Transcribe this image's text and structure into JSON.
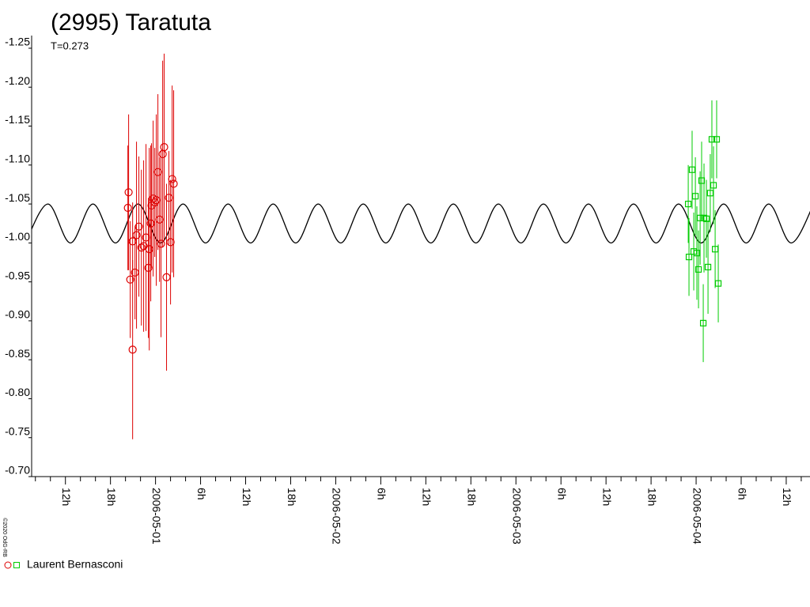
{
  "chart_data": {
    "type": "lightcurve",
    "title": "(2995) Taratuta",
    "subtitle": "T=0.273",
    "credit": "©2020 OdG-RB",
    "xlim": [
      "2006-04-30T07:30",
      "2006-05-04T15:10"
    ],
    "ylim": [
      -0.7,
      -1.25
    ],
    "yticks": [
      {
        "value": -1.25,
        "label": "-1.25"
      },
      {
        "value": -1.2,
        "label": "-1.20"
      },
      {
        "value": -1.15,
        "label": "-1.15"
      },
      {
        "value": -1.1,
        "label": "-1.10"
      },
      {
        "value": -1.05,
        "label": "-1.05"
      },
      {
        "value": -1.0,
        "label": "-1.00"
      },
      {
        "value": -0.95,
        "label": "-0.95"
      },
      {
        "value": -0.9,
        "label": "-0.90"
      },
      {
        "value": -0.85,
        "label": "-0.85"
      },
      {
        "value": -0.8,
        "label": "-0.80"
      },
      {
        "value": -0.75,
        "label": "-0.75"
      },
      {
        "value": -0.7,
        "label": "-0.70"
      }
    ],
    "xticks": [
      {
        "value": "2006-04-30T12:00",
        "label": "12h"
      },
      {
        "value": "2006-04-30T18:00",
        "label": "18h"
      },
      {
        "value": "2006-05-01T00:00",
        "label": "2006-05-01"
      },
      {
        "value": "2006-05-01T06:00",
        "label": "6h"
      },
      {
        "value": "2006-05-01T12:00",
        "label": "12h"
      },
      {
        "value": "2006-05-01T18:00",
        "label": "18h"
      },
      {
        "value": "2006-05-02T00:00",
        "label": "2006-05-02"
      },
      {
        "value": "2006-05-02T06:00",
        "label": "6h"
      },
      {
        "value": "2006-05-02T12:00",
        "label": "12h"
      },
      {
        "value": "2006-05-02T18:00",
        "label": "18h"
      },
      {
        "value": "2006-05-03T00:00",
        "label": "2006-05-03"
      },
      {
        "value": "2006-05-03T06:00",
        "label": "6h"
      },
      {
        "value": "2006-05-03T12:00",
        "label": "12h"
      },
      {
        "value": "2006-05-03T18:00",
        "label": "18h"
      },
      {
        "value": "2006-05-04T00:00",
        "label": "2006-05-04"
      },
      {
        "value": "2006-05-04T06:00",
        "label": "6h"
      },
      {
        "value": "2006-05-04T12:00",
        "label": "12h"
      }
    ],
    "xminorticks": [
      "2006-04-30T08:00",
      "2006-04-30T10:00",
      "2006-04-30T14:00",
      "2006-04-30T16:00",
      "2006-04-30T20:00",
      "2006-04-30T22:00",
      "2006-05-01T02:00",
      "2006-05-01T04:00",
      "2006-05-01T08:00",
      "2006-05-01T10:00",
      "2006-05-01T14:00",
      "2006-05-01T16:00",
      "2006-05-01T20:00",
      "2006-05-01T22:00",
      "2006-05-02T02:00",
      "2006-05-02T04:00",
      "2006-05-02T08:00",
      "2006-05-02T10:00",
      "2006-05-02T14:00",
      "2006-05-02T16:00",
      "2006-05-02T20:00",
      "2006-05-02T22:00",
      "2006-05-03T02:00",
      "2006-05-03T04:00",
      "2006-05-03T08:00",
      "2006-05-03T10:00",
      "2006-05-03T14:00",
      "2006-05-03T16:00",
      "2006-05-03T20:00",
      "2006-05-03T22:00",
      "2006-05-04T02:00",
      "2006-05-04T04:00",
      "2006-05-04T08:00",
      "2006-05-04T10:00",
      "2006-05-04T14:00"
    ],
    "model": {
      "color": "#000000",
      "x": [
        "2006-04-30T06:40",
        "2006-04-30T09:40",
        "2006-04-30T12:40",
        "2006-04-30T15:40",
        "2006-04-30T18:40",
        "2006-04-30T21:40",
        "2006-05-01T00:40",
        "2006-05-01T03:40",
        "2006-05-01T06:40",
        "2006-05-01T09:40",
        "2006-05-01T12:40",
        "2006-05-01T15:40",
        "2006-05-01T18:40",
        "2006-05-01T21:40",
        "2006-05-02T00:40",
        "2006-05-02T03:40",
        "2006-05-02T06:40",
        "2006-05-02T09:40",
        "2006-05-02T12:40",
        "2006-05-02T15:40",
        "2006-05-02T18:40",
        "2006-05-02T21:40",
        "2006-05-03T00:40",
        "2006-05-03T03:40",
        "2006-05-03T06:40",
        "2006-05-03T09:40",
        "2006-05-03T12:40",
        "2006-05-03T15:40",
        "2006-05-03T18:40",
        "2006-05-03T21:40",
        "2006-05-04T00:40",
        "2006-05-04T03:40",
        "2006-05-04T06:40",
        "2006-05-04T09:40",
        "2006-05-04T12:40",
        "2006-05-04T15:40"
      ],
      "values": [
        -1.0,
        -1.05,
        -1.0,
        -1.05,
        -1.0,
        -1.05,
        -1.0,
        -1.05,
        -1.0,
        -1.05,
        -1.0,
        -1.05,
        -1.0,
        -1.05,
        -1.0,
        -1.05,
        -1.0,
        -1.05,
        -1.0,
        -1.05,
        -1.0,
        -1.05,
        -1.0,
        -1.05,
        -1.0,
        -1.05,
        -1.0,
        -1.05,
        -1.0,
        -1.05,
        -1.0,
        -1.05,
        -1.0,
        -1.05,
        -1.0,
        -1.05
      ]
    },
    "series": [
      {
        "name": "Laurent Bernasconi",
        "sessions": [
          {
            "color": "#dd0000",
            "marker": "circle",
            "x": [
              "2006-04-30T20:25",
              "2006-04-30T20:19",
              "2006-04-30T20:38",
              "2006-04-30T20:57",
              "2006-04-30T20:57",
              "2006-04-30T21:16",
              "2006-04-30T21:28",
              "2006-04-30T21:47",
              "2006-04-30T22:07",
              "2006-04-30T22:25",
              "2006-04-30T22:44",
              "2006-04-30T23:03",
              "2006-04-30T23:10",
              "2006-04-30T23:22",
              "2006-04-30T23:28",
              "2006-04-30T23:41",
              "2006-04-30T23:54",
              "2006-05-01T00:06",
              "2006-05-01T00:19",
              "2006-05-01T00:32",
              "2006-05-01T00:44",
              "2006-05-01T00:57",
              "2006-05-01T01:09",
              "2006-05-01T01:28",
              "2006-05-01T01:47",
              "2006-05-01T02:00",
              "2006-05-01T02:13",
              "2006-05-01T02:25"
            ],
            "values": [
              -1.065,
              -1.045,
              -0.953,
              -0.863,
              -1.002,
              -0.962,
              -1.01,
              -1.021,
              -0.994,
              -0.996,
              -1.007,
              -0.968,
              -0.992,
              -1.025,
              -1.048,
              -1.057,
              -1.052,
              -1.055,
              -1.091,
              -1.03,
              -0.999,
              -1.114,
              -1.123,
              -0.956,
              -1.058,
              -1.001,
              -1.082,
              -1.076
            ],
            "errors": [
              0.1,
              0.08,
              0.075,
              0.115,
              0.05,
              0.06,
              0.12,
              0.09,
              0.1,
              0.11,
              0.12,
              0.09,
              0.13,
              0.1,
              0.08,
              0.1,
              0.07,
              0.11,
              0.1,
              0.08,
              0.12,
              0.12,
              0.12,
              0.12,
              0.06,
              0.08,
              0.12,
              0.12
            ]
          },
          {
            "color": "#00cc00",
            "marker": "square",
            "x": [
              "2006-05-03T22:57",
              "2006-05-03T23:03",
              "2006-05-03T23:28",
              "2006-05-03T23:41",
              "2006-05-03T23:54",
              "2006-05-04T00:06",
              "2006-05-04T00:19",
              "2006-05-04T00:32",
              "2006-05-04T00:44",
              "2006-05-04T00:57",
              "2006-05-04T01:03",
              "2006-05-04T01:22",
              "2006-05-04T01:35",
              "2006-05-04T01:53",
              "2006-05-04T02:06",
              "2006-05-04T02:19",
              "2006-05-04T02:32",
              "2006-05-04T02:44",
              "2006-05-04T02:57"
            ],
            "values": [
              -1.05,
              -0.982,
              -1.094,
              -0.989,
              -1.06,
              -0.987,
              -0.966,
              -1.032,
              -1.08,
              -0.897,
              -1.032,
              -1.031,
              -0.969,
              -1.064,
              -1.133,
              -1.074,
              -0.992,
              -1.133,
              -0.948
            ],
            "errors": [
              0.05,
              0.05,
              0.05,
              0.05,
              0.05,
              0.06,
              0.05,
              0.06,
              0.05,
              0.05,
              0.07,
              0.05,
              0.06,
              0.05,
              0.05,
              0.05,
              0.05,
              0.05,
              0.05
            ]
          }
        ]
      }
    ]
  }
}
